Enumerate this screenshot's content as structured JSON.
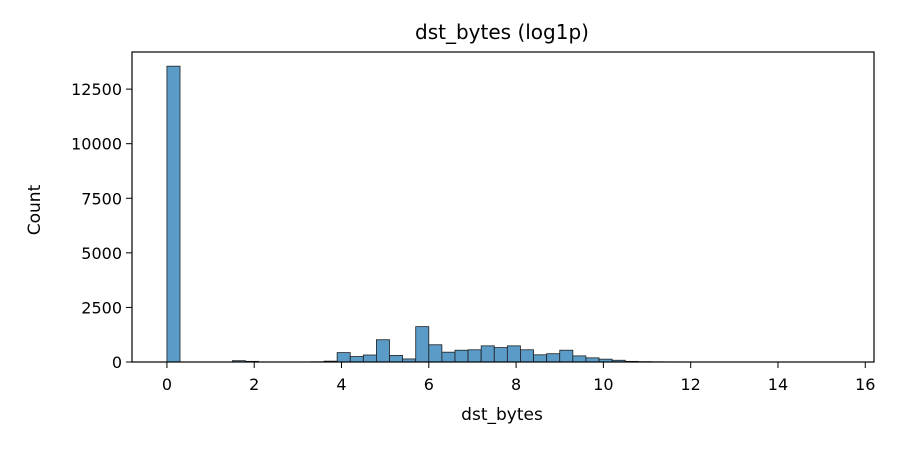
{
  "chart_data": {
    "type": "bar",
    "title": "dst_bytes (log1p)",
    "xlabel": "dst_bytes",
    "ylabel": "Count",
    "xlim": [
      -0.8,
      16.2
    ],
    "ylim": [
      0,
      14200
    ],
    "xticks": [
      0,
      2,
      4,
      6,
      8,
      10,
      12,
      14,
      16
    ],
    "yticks": [
      0,
      2500,
      5000,
      7500,
      10000,
      12500
    ],
    "bin_width": 0.3,
    "bins": [
      {
        "x": 0.0,
        "value": 13550
      },
      {
        "x": 1.5,
        "value": 60
      },
      {
        "x": 1.8,
        "value": 30
      },
      {
        "x": 3.3,
        "value": 10
      },
      {
        "x": 3.6,
        "value": 40
      },
      {
        "x": 3.9,
        "value": 430
      },
      {
        "x": 4.2,
        "value": 250
      },
      {
        "x": 4.5,
        "value": 320
      },
      {
        "x": 4.8,
        "value": 1020
      },
      {
        "x": 5.1,
        "value": 300
      },
      {
        "x": 5.4,
        "value": 140
      },
      {
        "x": 5.7,
        "value": 1620
      },
      {
        "x": 6.0,
        "value": 790
      },
      {
        "x": 6.3,
        "value": 450
      },
      {
        "x": 6.6,
        "value": 540
      },
      {
        "x": 6.9,
        "value": 560
      },
      {
        "x": 7.2,
        "value": 740
      },
      {
        "x": 7.5,
        "value": 660
      },
      {
        "x": 7.8,
        "value": 740
      },
      {
        "x": 8.1,
        "value": 560
      },
      {
        "x": 8.4,
        "value": 330
      },
      {
        "x": 8.7,
        "value": 380
      },
      {
        "x": 9.0,
        "value": 540
      },
      {
        "x": 9.3,
        "value": 280
      },
      {
        "x": 9.6,
        "value": 190
      },
      {
        "x": 9.9,
        "value": 130
      },
      {
        "x": 10.2,
        "value": 80
      },
      {
        "x": 10.5,
        "value": 30
      },
      {
        "x": 10.8,
        "value": 15
      },
      {
        "x": 11.1,
        "value": 8
      },
      {
        "x": 11.4,
        "value": 5
      }
    ],
    "bar_color": "#5a9bc8",
    "edge_color": "#1f1f1f",
    "grid": false,
    "legend": "none"
  }
}
